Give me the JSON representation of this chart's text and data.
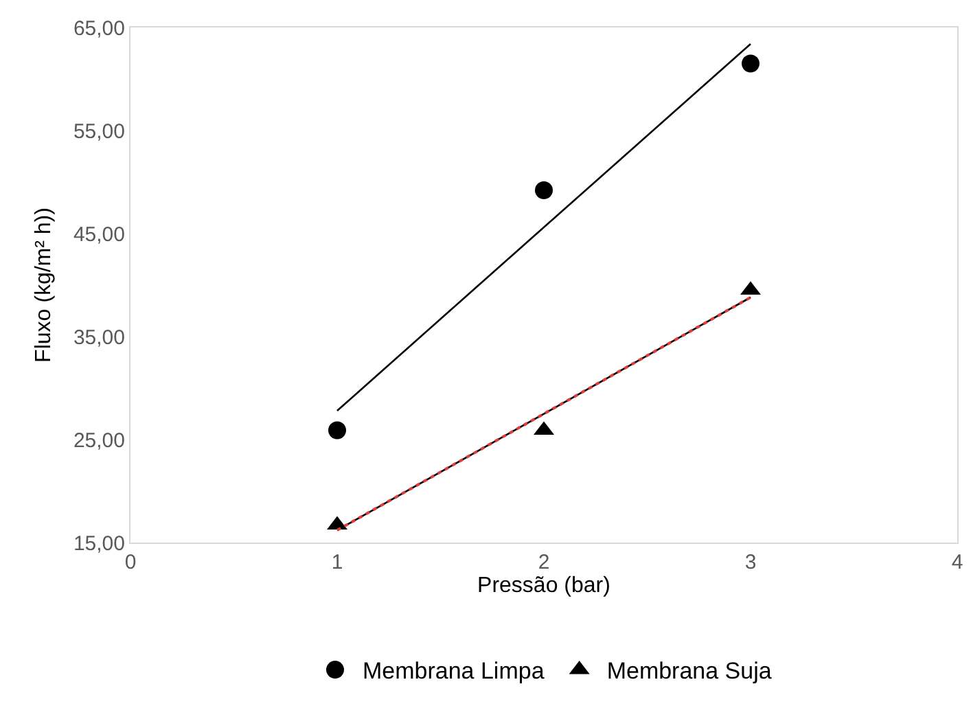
{
  "chart_data": {
    "type": "scatter",
    "xlabel": "Pressão (bar)",
    "ylabel": "Fluxo (kg/m² h))",
    "xlim": [
      0,
      4
    ],
    "xticks": [
      0,
      1,
      2,
      3,
      4
    ],
    "ylim": [
      15,
      65
    ],
    "yticks": [
      {
        "value": 15,
        "label": "15,00"
      },
      {
        "value": 25,
        "label": "25,00"
      },
      {
        "value": 35,
        "label": "35,00"
      },
      {
        "value": 45,
        "label": "45,00"
      },
      {
        "value": 55,
        "label": "55,00"
      },
      {
        "value": 65,
        "label": "65,00"
      }
    ],
    "grid": false,
    "legend": "bottom",
    "series": [
      {
        "name": "Membrana Limpa",
        "color": "#000000",
        "marker": "circle",
        "x": [
          1,
          2,
          3
        ],
        "values": [
          25.9,
          49.2,
          61.5
        ]
      },
      {
        "name": "Membrana Suja",
        "color": "#000000",
        "marker": "triangle",
        "x": [
          1,
          2,
          3
        ],
        "values": [
          16.7,
          25.9,
          39.5
        ]
      },
      {
        "type": "line",
        "color": "#000000",
        "line_style": "solid",
        "x": [
          1,
          3
        ],
        "values": [
          27.8,
          63.4
        ]
      },
      {
        "type": "line",
        "color": "#000000",
        "line_style": "solid",
        "x": [
          1,
          3
        ],
        "values": [
          16.2,
          38.8
        ]
      },
      {
        "type": "line",
        "color": "#e03c3c",
        "line_style": "dotted",
        "x": [
          1,
          3
        ],
        "values": [
          16.2,
          38.8
        ]
      }
    ]
  }
}
